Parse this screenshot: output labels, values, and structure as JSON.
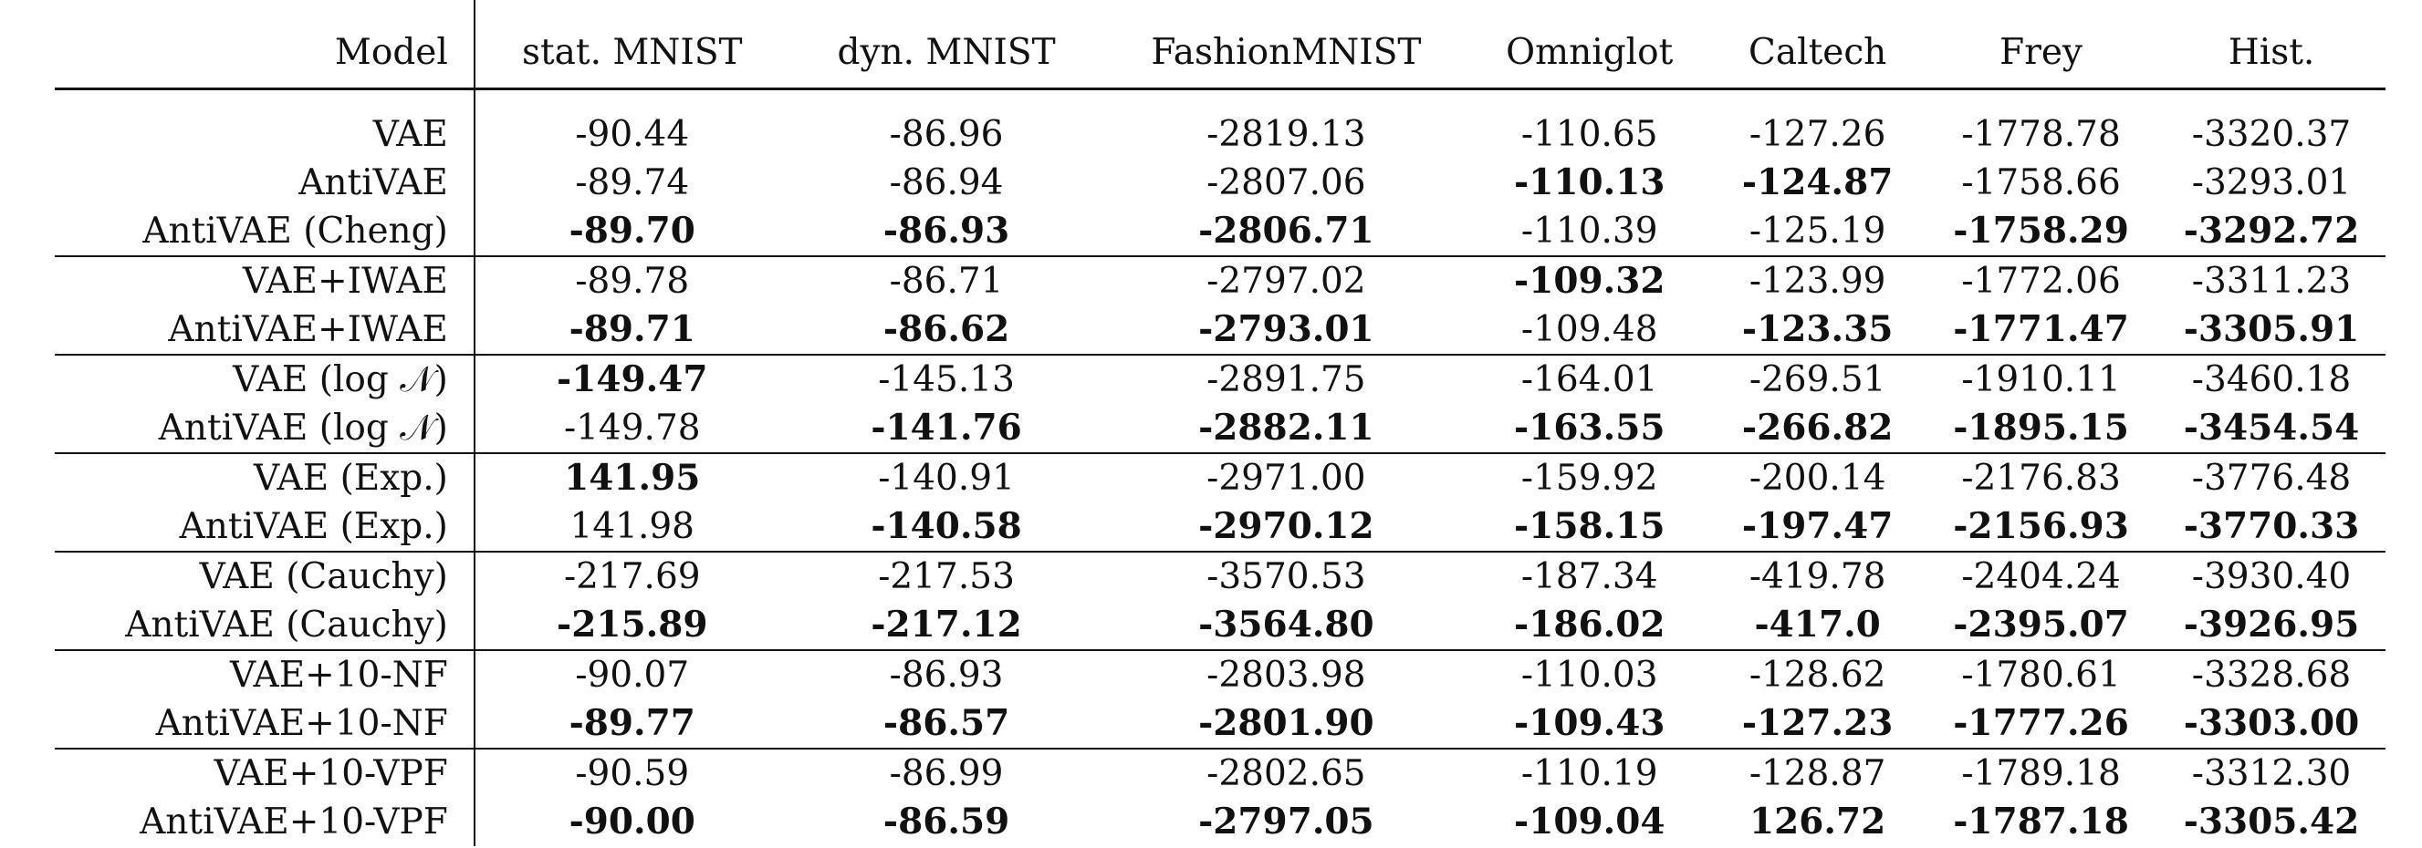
{
  "table": {
    "columns": [
      "Model",
      "stat. MNIST",
      "dyn. MNIST",
      "FashionMNIST",
      "Omniglot",
      "Caltech",
      "Frey",
      "Hist."
    ],
    "rows": [
      {
        "model": "VAE",
        "values": [
          "-90.44",
          "-86.96",
          "-2819.13",
          "-110.65",
          "-127.26",
          "-1778.78",
          "-3320.37"
        ],
        "bold": [
          false,
          false,
          false,
          false,
          false,
          false,
          false
        ],
        "group_start": false
      },
      {
        "model": "AntiVAE",
        "values": [
          "-89.74",
          "-86.94",
          "-2807.06",
          "-110.13",
          "-124.87",
          "-1758.66",
          "-3293.01"
        ],
        "bold": [
          false,
          false,
          false,
          true,
          true,
          false,
          false
        ],
        "group_start": false
      },
      {
        "model": "AntiVAE (Cheng)",
        "values": [
          "-89.70",
          "-86.93",
          "-2806.71",
          "-110.39",
          "-125.19",
          "-1758.29",
          "-3292.72"
        ],
        "bold": [
          true,
          true,
          true,
          false,
          false,
          true,
          true
        ],
        "group_start": false
      },
      {
        "model": "VAE+IWAE",
        "values": [
          "-89.78",
          "-86.71",
          "-2797.02",
          "-109.32",
          "-123.99",
          "-1772.06",
          "-3311.23"
        ],
        "bold": [
          false,
          false,
          false,
          true,
          false,
          false,
          false
        ],
        "group_start": true
      },
      {
        "model": "AntiVAE+IWAE",
        "values": [
          "-89.71",
          "-86.62",
          "-2793.01",
          "-109.48",
          "-123.35",
          "-1771.47",
          "-3305.91"
        ],
        "bold": [
          true,
          true,
          true,
          false,
          true,
          true,
          true
        ],
        "group_start": false
      },
      {
        "model": "VAE (log 𝒩)",
        "values": [
          "-149.47",
          "-145.13",
          "-2891.75",
          "-164.01",
          "-269.51",
          "-1910.11",
          "-3460.18"
        ],
        "bold": [
          true,
          false,
          false,
          false,
          false,
          false,
          false
        ],
        "group_start": true
      },
      {
        "model": "AntiVAE (log 𝒩)",
        "values": [
          "-149.78",
          "-141.76",
          "-2882.11",
          "-163.55",
          "-266.82",
          "-1895.15",
          "-3454.54"
        ],
        "bold": [
          false,
          true,
          true,
          true,
          true,
          true,
          true
        ],
        "group_start": false
      },
      {
        "model": "VAE (Exp.)",
        "values": [
          "141.95",
          "-140.91",
          "-2971.00",
          "-159.92",
          "-200.14",
          "-2176.83",
          "-3776.48"
        ],
        "bold": [
          true,
          false,
          false,
          false,
          false,
          false,
          false
        ],
        "group_start": true
      },
      {
        "model": "AntiVAE (Exp.)",
        "values": [
          "141.98",
          "-140.58",
          "-2970.12",
          "-158.15",
          "-197.47",
          "-2156.93",
          "-3770.33"
        ],
        "bold": [
          false,
          true,
          true,
          true,
          true,
          true,
          true
        ],
        "group_start": false
      },
      {
        "model": "VAE (Cauchy)",
        "values": [
          "-217.69",
          "-217.53",
          "-3570.53",
          "-187.34",
          "-419.78",
          "-2404.24",
          "-3930.40"
        ],
        "bold": [
          false,
          false,
          false,
          false,
          false,
          false,
          false
        ],
        "group_start": true
      },
      {
        "model": "AntiVAE (Cauchy)",
        "values": [
          "-215.89",
          "-217.12",
          "-3564.80",
          "-186.02",
          "-417.0",
          "-2395.07",
          "-3926.95"
        ],
        "bold": [
          true,
          true,
          true,
          true,
          true,
          true,
          true
        ],
        "group_start": false
      },
      {
        "model": "VAE+10-NF",
        "values": [
          "-90.07",
          "-86.93",
          "-2803.98",
          "-110.03",
          "-128.62",
          "-1780.61",
          "-3328.68"
        ],
        "bold": [
          false,
          false,
          false,
          false,
          false,
          false,
          false
        ],
        "group_start": true
      },
      {
        "model": "AntiVAE+10-NF",
        "values": [
          "-89.77",
          "-86.57",
          "-2801.90",
          "-109.43",
          "-127.23",
          "-1777.26",
          "-3303.00"
        ],
        "bold": [
          true,
          true,
          true,
          true,
          true,
          true,
          true
        ],
        "group_start": false
      },
      {
        "model": "VAE+10-VPF",
        "values": [
          "-90.59",
          "-86.99",
          "-2802.65",
          "-110.19",
          "-128.87",
          "-1789.18",
          "-3312.30"
        ],
        "bold": [
          false,
          false,
          false,
          false,
          false,
          false,
          false
        ],
        "group_start": true
      },
      {
        "model": "AntiVAE+10-VPF",
        "values": [
          "-90.00",
          "-86.59",
          "-2797.05",
          "-109.04",
          "126.72",
          "-1787.18",
          "-3305.42"
        ],
        "bold": [
          true,
          true,
          true,
          true,
          true,
          true,
          true
        ],
        "group_start": false
      }
    ]
  }
}
